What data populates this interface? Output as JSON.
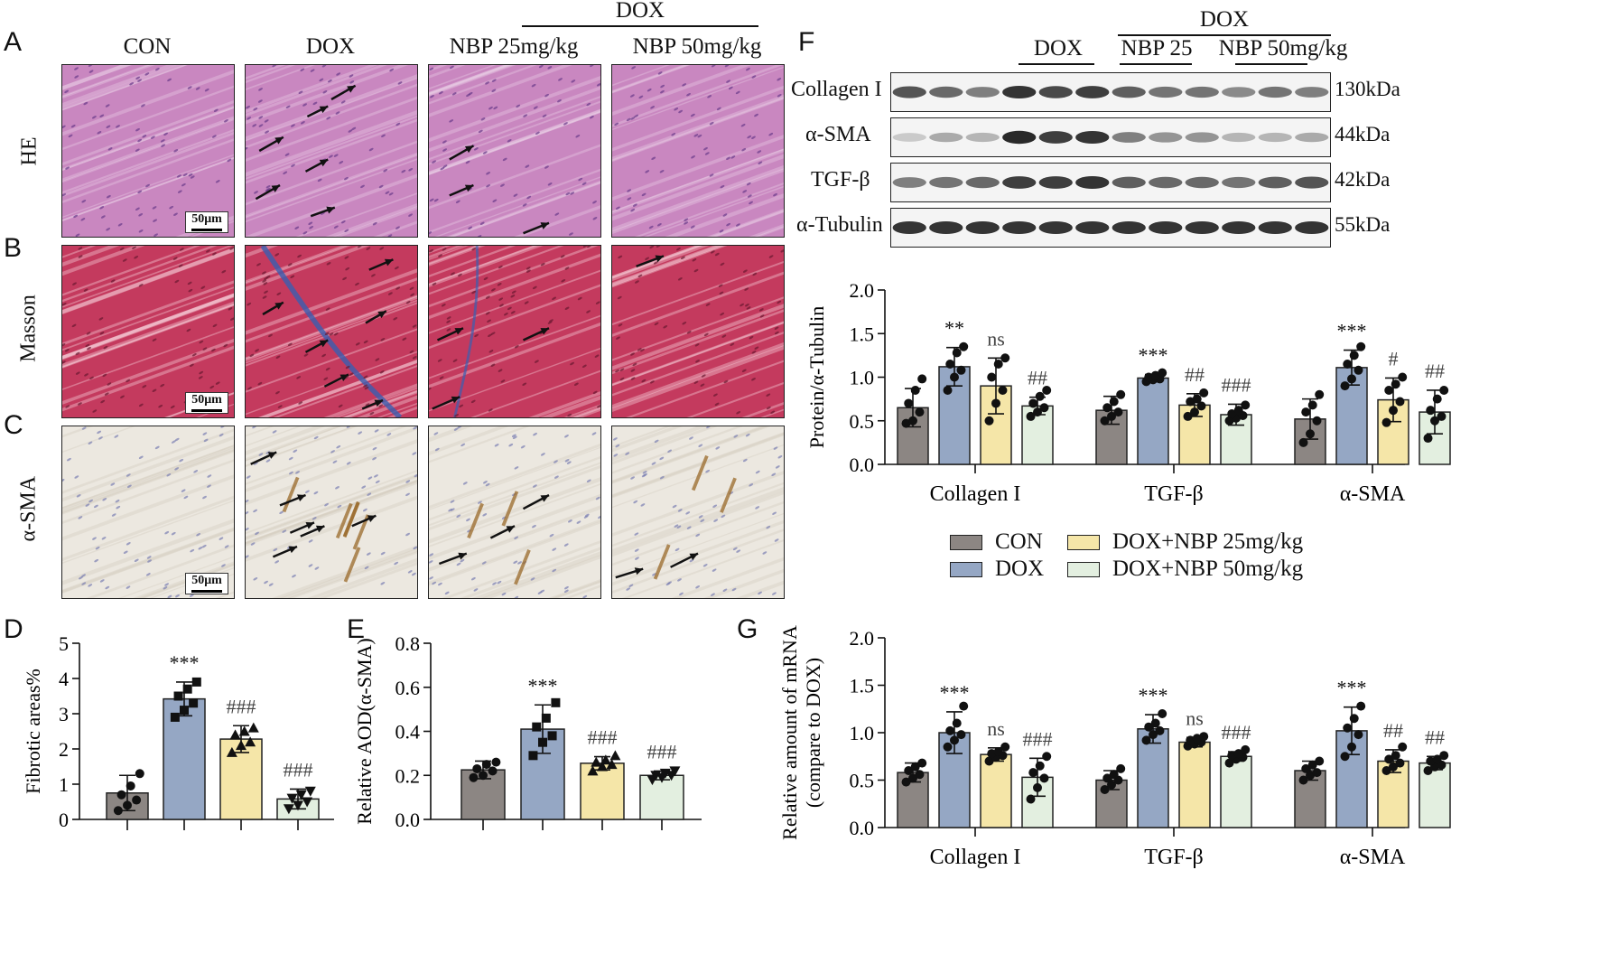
{
  "panel_letters": {
    "A": "A",
    "B": "B",
    "C": "C",
    "D": "D",
    "E": "E",
    "F": "F",
    "G": "G"
  },
  "histology": {
    "group_bar_label": "DOX",
    "columns": [
      "CON",
      "DOX",
      "NBP 25mg/kg",
      "NBP 50mg/kg"
    ],
    "rows": [
      "HE",
      "Masson",
      "α-SMA"
    ],
    "scale_label": "50μm",
    "colors": {
      "he": "#c987c0",
      "masson": "#c43a5e",
      "ihc": "#ece8e0",
      "collagen": "#3a5fb0",
      "brown": "#9a6a2a"
    }
  },
  "western": {
    "group_bar_label": "DOX",
    "headers": [
      "DOX",
      "NBP 25",
      "NBP 50mg/kg"
    ],
    "bands": [
      {
        "name": "Collagen I",
        "kda": "130kDa",
        "intensity": [
          0.75,
          0.65,
          0.55,
          0.9,
          0.8,
          0.85,
          0.7,
          0.6,
          0.6,
          0.5,
          0.6,
          0.55
        ]
      },
      {
        "name": "α-SMA",
        "kda": "44kDa",
        "intensity": [
          0.2,
          0.35,
          0.3,
          0.95,
          0.85,
          0.9,
          0.55,
          0.45,
          0.45,
          0.3,
          0.3,
          0.35
        ]
      },
      {
        "name": "TGF-β",
        "kda": "42kDa",
        "intensity": [
          0.55,
          0.6,
          0.65,
          0.85,
          0.85,
          0.9,
          0.7,
          0.65,
          0.65,
          0.6,
          0.7,
          0.75
        ]
      },
      {
        "name": "α-Tubulin",
        "kda": "55kDa",
        "intensity": [
          0.9,
          0.9,
          0.9,
          0.9,
          0.9,
          0.9,
          0.9,
          0.9,
          0.9,
          0.9,
          0.9,
          0.9
        ]
      }
    ]
  },
  "legend": {
    "items": [
      {
        "label": "CON",
        "color": "#8c8683"
      },
      {
        "label": "DOX",
        "color": "#95a7c4"
      },
      {
        "label": "DOX+NBP 25mg/kg",
        "color": "#f5e6a8"
      },
      {
        "label": "DOX+NBP 50mg/kg",
        "color": "#e3efe0"
      }
    ]
  },
  "chart_data": [
    {
      "id": "D",
      "type": "bar",
      "ylabel": "Fibrotic areas%",
      "ylim": [
        0,
        5
      ],
      "yticks": [
        "0",
        "1",
        "2",
        "3",
        "4",
        "5"
      ],
      "categories": [
        "",
        "",
        "",
        ""
      ],
      "values": [
        0.75,
        3.42,
        2.28,
        0.58
      ],
      "errors": [
        0.5,
        0.48,
        0.38,
        0.28
      ],
      "significance": [
        "",
        "***",
        "###",
        "###"
      ],
      "colors": [
        "#8c8683",
        "#95a7c4",
        "#f5e6a8",
        "#e3efe0"
      ],
      "points": [
        [
          0.25,
          0.4,
          0.55,
          0.7,
          0.95,
          1.3
        ],
        [
          2.9,
          3.1,
          3.3,
          3.5,
          3.7,
          3.9
        ],
        [
          1.9,
          2.1,
          2.2,
          2.4,
          2.5,
          2.6
        ],
        [
          0.3,
          0.4,
          0.5,
          0.6,
          0.7,
          0.8
        ]
      ]
    },
    {
      "id": "E",
      "type": "bar",
      "ylabel": "Relative AOD(α-SMA)",
      "ylim": [
        0,
        0.8
      ],
      "yticks": [
        "0.0",
        "0.2",
        "0.4",
        "0.6",
        "0.8"
      ],
      "categories": [
        "",
        "",
        "",
        ""
      ],
      "values": [
        0.225,
        0.41,
        0.255,
        0.2
      ],
      "errors": [
        0.04,
        0.11,
        0.03,
        0.02
      ],
      "significance": [
        "",
        "***",
        "###",
        "###"
      ],
      "colors": [
        "#8c8683",
        "#95a7c4",
        "#f5e6a8",
        "#e3efe0"
      ],
      "points": [
        [
          0.19,
          0.2,
          0.22,
          0.23,
          0.25,
          0.26
        ],
        [
          0.29,
          0.35,
          0.38,
          0.42,
          0.46,
          0.53
        ],
        [
          0.22,
          0.24,
          0.25,
          0.26,
          0.27,
          0.29
        ],
        [
          0.18,
          0.19,
          0.2,
          0.2,
          0.21,
          0.22
        ]
      ]
    },
    {
      "id": "F",
      "type": "bar",
      "ylabel": "Protein/α-Tubulin",
      "ylim": [
        0,
        2.0
      ],
      "yticks": [
        "0.0",
        "0.5",
        "1.0",
        "1.5",
        "2.0"
      ],
      "categories": [
        "Collagen I",
        "TGF-β",
        "α-SMA"
      ],
      "series": [
        {
          "values": [
            0.65,
            0.62,
            0.52
          ],
          "errors": [
            0.22,
            0.16,
            0.23
          ],
          "points": [
            [
              0.47,
              0.5,
              0.6,
              0.7,
              0.85,
              0.98
            ],
            [
              0.5,
              0.55,
              0.6,
              0.65,
              0.72,
              0.8
            ],
            [
              0.25,
              0.35,
              0.5,
              0.6,
              0.68,
              0.8
            ]
          ]
        },
        {
          "values": [
            1.12,
            0.99,
            1.11
          ],
          "errors": [
            0.22,
            0.04,
            0.2
          ],
          "points": [
            [
              0.85,
              1.0,
              1.08,
              1.15,
              1.28,
              1.35
            ],
            [
              0.95,
              0.97,
              0.98,
              1.0,
              1.02,
              1.05
            ],
            [
              0.9,
              0.98,
              1.08,
              1.15,
              1.25,
              1.35
            ]
          ]
        },
        {
          "values": [
            0.9,
            0.68,
            0.74
          ],
          "errors": [
            0.32,
            0.13,
            0.25
          ],
          "points": [
            [
              0.5,
              0.7,
              0.85,
              1.0,
              1.15,
              1.22
            ],
            [
              0.55,
              0.6,
              0.67,
              0.72,
              0.75,
              0.82
            ],
            [
              0.48,
              0.62,
              0.72,
              0.85,
              0.92,
              1.0
            ]
          ]
        },
        {
          "values": [
            0.67,
            0.57,
            0.6
          ],
          "errors": [
            0.1,
            0.12,
            0.25
          ],
          "points": [
            [
              0.55,
              0.6,
              0.65,
              0.7,
              0.78,
              0.85
            ],
            [
              0.5,
              0.53,
              0.56,
              0.58,
              0.62,
              0.68
            ],
            [
              0.3,
              0.5,
              0.55,
              0.62,
              0.75,
              0.85
            ]
          ]
        }
      ],
      "significance": [
        [
          "",
          "**",
          "ns",
          "##"
        ],
        [
          "",
          "***",
          "##",
          "###"
        ],
        [
          "",
          "***",
          "#",
          "##"
        ]
      ],
      "colors": [
        "#8c8683",
        "#95a7c4",
        "#f5e6a8",
        "#e3efe0"
      ]
    },
    {
      "id": "G",
      "type": "bar",
      "ylabel": "Relative amount of mRNA",
      "ylabel2": "(compare to DOX)",
      "ylim": [
        0,
        2.0
      ],
      "yticks": [
        "0.0",
        "0.5",
        "1.0",
        "1.5",
        "2.0"
      ],
      "categories": [
        "Collagen I",
        "TGF-β",
        "α-SMA"
      ],
      "series": [
        {
          "values": [
            0.58,
            0.5,
            0.6
          ],
          "errors": [
            0.1,
            0.1,
            0.1
          ],
          "points": [
            [
              0.48,
              0.52,
              0.56,
              0.6,
              0.64,
              0.68
            ],
            [
              0.4,
              0.45,
              0.5,
              0.52,
              0.56,
              0.62
            ],
            [
              0.5,
              0.55,
              0.58,
              0.62,
              0.66,
              0.7
            ]
          ]
        },
        {
          "values": [
            1.0,
            1.04,
            1.02
          ],
          "errors": [
            0.22,
            0.15,
            0.25
          ],
          "points": [
            [
              0.85,
              0.92,
              0.98,
              1.02,
              1.1,
              1.28
            ],
            [
              0.92,
              0.98,
              1.02,
              1.06,
              1.1,
              1.2
            ],
            [
              0.75,
              0.85,
              0.98,
              1.05,
              1.15,
              1.28
            ]
          ]
        },
        {
          "values": [
            0.77,
            0.9,
            0.7
          ],
          "errors": [
            0.07,
            0.05,
            0.12
          ],
          "points": [
            [
              0.7,
              0.74,
              0.76,
              0.78,
              0.8,
              0.85
            ],
            [
              0.86,
              0.88,
              0.9,
              0.92,
              0.94,
              0.96
            ],
            [
              0.6,
              0.64,
              0.68,
              0.72,
              0.76,
              0.85
            ]
          ]
        },
        {
          "values": [
            0.53,
            0.75,
            0.68
          ],
          "errors": [
            0.2,
            0.05,
            0.07
          ],
          "points": [
            [
              0.3,
              0.42,
              0.52,
              0.58,
              0.65,
              0.75
            ],
            [
              0.68,
              0.72,
              0.74,
              0.76,
              0.78,
              0.82
            ],
            [
              0.6,
              0.64,
              0.66,
              0.7,
              0.72,
              0.76
            ]
          ]
        }
      ],
      "significance": [
        [
          "",
          "***",
          "ns",
          "###"
        ],
        [
          "",
          "***",
          "ns",
          "###"
        ],
        [
          "",
          "***",
          "##",
          "##"
        ]
      ],
      "colors": [
        "#8c8683",
        "#95a7c4",
        "#f5e6a8",
        "#e3efe0"
      ]
    }
  ]
}
